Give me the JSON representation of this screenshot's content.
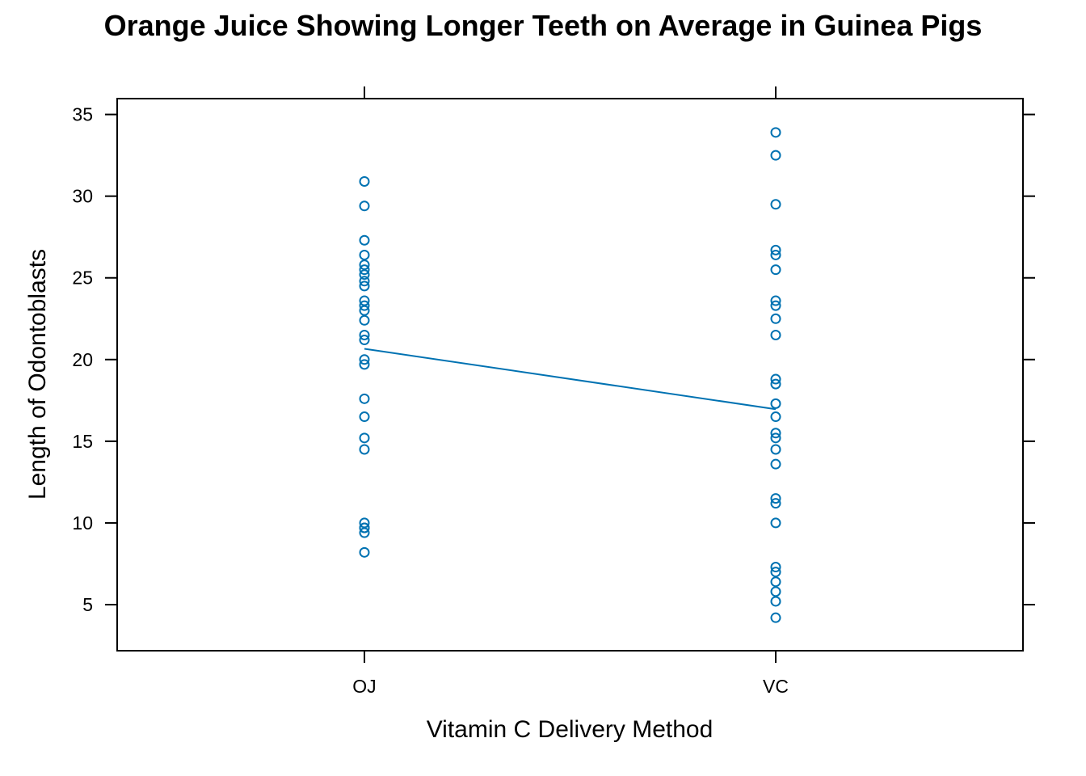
{
  "chart_data": {
    "type": "scatter",
    "title": "Orange Juice Showing Longer Teeth on Average in Guinea Pigs",
    "xlabel": "Vitamin C Delivery Method",
    "ylabel": "Length of Odontoblasts",
    "categories": [
      "OJ",
      "VC"
    ],
    "yticks": [
      5,
      10,
      15,
      20,
      25,
      30,
      35
    ],
    "ylim": [
      2.18,
      35.97
    ],
    "grid": false,
    "legend": "none",
    "series": [
      {
        "values": {
          "OJ": [
            8.2,
            9.4,
            9.7,
            9.7,
            10.0,
            14.5,
            15.2,
            16.5,
            17.6,
            19.7,
            20.0,
            21.2,
            21.5,
            22.4,
            23.0,
            23.3,
            23.6,
            24.5,
            24.8,
            25.2,
            25.5,
            25.8,
            26.4,
            27.3,
            29.4,
            30.9
          ],
          "VC": [
            4.2,
            5.2,
            5.8,
            6.4,
            7.0,
            7.3,
            10.0,
            11.2,
            11.5,
            13.6,
            14.5,
            15.2,
            15.5,
            16.5,
            17.3,
            18.5,
            18.8,
            21.5,
            22.5,
            23.3,
            23.6,
            25.5,
            26.4,
            26.7,
            29.5,
            32.5,
            33.9
          ]
        },
        "means": {
          "OJ": 20.66,
          "VC": 16.96
        },
        "color": "#0072b2"
      }
    ]
  }
}
